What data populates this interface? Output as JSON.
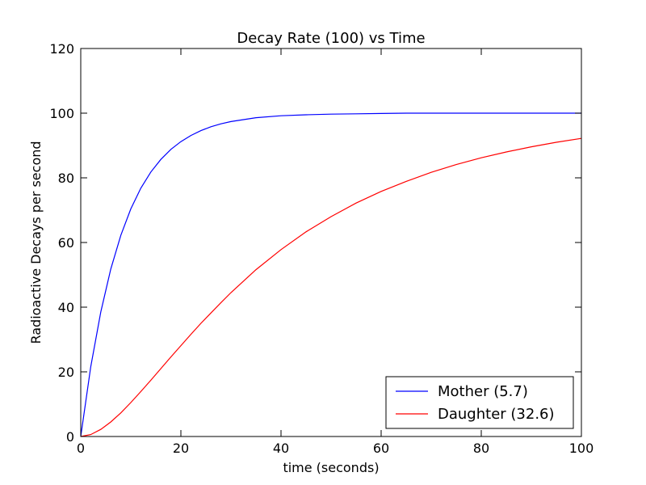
{
  "chart_data": {
    "type": "line",
    "title": "Decay Rate (100) vs Time",
    "xlabel": "time (seconds)",
    "ylabel": "Radioactive Decays per second",
    "xlim": [
      0,
      100
    ],
    "ylim": [
      0,
      120
    ],
    "xticks": [
      0,
      20,
      40,
      60,
      80,
      100
    ],
    "yticks": [
      0,
      20,
      40,
      60,
      80,
      100,
      120
    ],
    "grid": false,
    "legend_position": "lower-right",
    "x": [
      0,
      2,
      4,
      6,
      8,
      10,
      12,
      14,
      16,
      18,
      20,
      22,
      24,
      26,
      28,
      30,
      35,
      40,
      45,
      50,
      55,
      60,
      65,
      70,
      75,
      80,
      85,
      90,
      95,
      100
    ],
    "series": [
      {
        "name": "Mother (5.7)",
        "color": "#0000ff",
        "values": [
          0.0,
          21.6,
          38.5,
          51.8,
          62.2,
          70.4,
          76.8,
          81.8,
          85.7,
          88.8,
          91.2,
          93.1,
          94.6,
          95.8,
          96.7,
          97.4,
          98.6,
          99.2,
          99.5,
          99.7,
          99.8,
          99.9,
          100.0,
          100.0,
          100.0,
          100.0,
          100.0,
          100.0,
          100.0,
          100.0
        ]
      },
      {
        "name": "Daughter (32.6)",
        "color": "#ff0000",
        "values": [
          0.0,
          0.6,
          2.2,
          4.5,
          7.3,
          10.5,
          13.9,
          17.4,
          21.0,
          24.6,
          28.1,
          31.6,
          35.0,
          38.2,
          41.4,
          44.5,
          51.6,
          57.8,
          63.3,
          68.0,
          72.2,
          75.8,
          78.9,
          81.7,
          84.1,
          86.2,
          88.0,
          89.6,
          91.0,
          92.2
        ]
      }
    ]
  }
}
